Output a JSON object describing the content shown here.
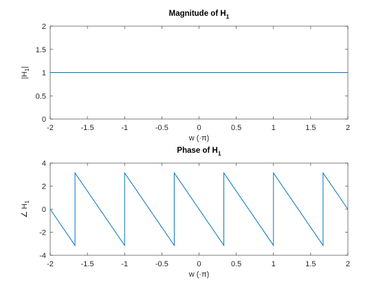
{
  "colors": {
    "line": "#0072BD",
    "axis": "#262626"
  },
  "chart_data": [
    {
      "type": "line",
      "title": "Magnitude of H",
      "title_subscript": "1",
      "xlabel": "w (·π)",
      "ylabel": "|H",
      "ylabel_subscript": "1",
      "ylabel_suffix": "|",
      "xlim": [
        -2,
        2
      ],
      "ylim": [
        0,
        2
      ],
      "xticks": [
        -2,
        -1.5,
        -1,
        -0.5,
        0,
        0.5,
        1,
        1.5,
        2
      ],
      "xtick_labels": [
        "-2",
        "-1.5",
        "-1",
        "-0.5",
        "0",
        "0.5",
        "1",
        "1.5",
        "2"
      ],
      "yticks": [
        0,
        0.5,
        1,
        1.5,
        2
      ],
      "ytick_labels": [
        "0",
        "0.5",
        "1",
        "1.5",
        "2"
      ],
      "grid": false,
      "series": [
        {
          "x": [
            -2,
            2
          ],
          "y": [
            1,
            1
          ]
        }
      ]
    },
    {
      "type": "line",
      "title": "Phase of H",
      "title_subscript": "1",
      "xlabel": "w (·π)",
      "ylabel": "∠ H",
      "ylabel_subscript": "1",
      "ylabel_suffix": "",
      "xlim": [
        -2,
        2
      ],
      "ylim": [
        -4,
        4
      ],
      "xticks": [
        -2,
        -1.5,
        -1,
        -0.5,
        0,
        0.5,
        1,
        1.5,
        2
      ],
      "xtick_labels": [
        "-2",
        "-1.5",
        "-1",
        "-0.5",
        "0",
        "0.5",
        "1",
        "1.5",
        "2"
      ],
      "yticks": [
        -4,
        -2,
        0,
        2,
        4
      ],
      "ytick_labels": [
        "-4",
        "-2",
        "0",
        "2",
        "4"
      ],
      "grid": false,
      "series": [
        {
          "x": [
            -2,
            -1.6667,
            -1.6667,
            -1,
            -1,
            -0.3333,
            -0.3333,
            0.3333,
            0.3333,
            1,
            1,
            1.6667,
            1.6667,
            2
          ],
          "y": [
            0,
            -3.1416,
            3.1416,
            -3.1416,
            3.1416,
            -3.1416,
            3.1416,
            -3.1416,
            3.1416,
            -3.1416,
            3.1416,
            -3.1416,
            3.1416,
            0
          ]
        }
      ]
    }
  ]
}
